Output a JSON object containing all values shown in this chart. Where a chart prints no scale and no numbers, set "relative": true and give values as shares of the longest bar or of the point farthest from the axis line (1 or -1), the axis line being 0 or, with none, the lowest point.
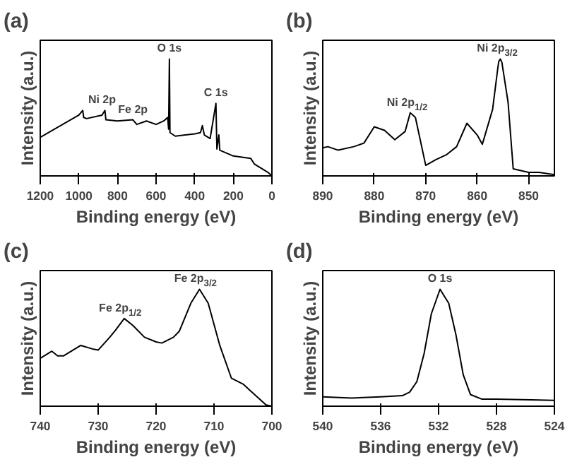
{
  "chart_data": [
    {
      "type": "line",
      "title": "(a)",
      "xlabel": "Binding energy (eV)",
      "ylabel": "Intensity (a.u.)",
      "relative": true,
      "xlim": [
        1200,
        0
      ],
      "xticks": [
        1200,
        1000,
        800,
        600,
        400,
        200,
        0
      ],
      "series": [
        {
          "color": "#000000",
          "x": [
            1200,
            1000,
            980,
            975,
            960,
            880,
            865,
            860,
            800,
            720,
            700,
            650,
            600,
            560,
            540,
            535,
            531,
            528,
            500,
            400,
            370,
            360,
            350,
            320,
            290,
            285,
            275,
            270,
            200,
            110,
            90,
            60,
            20,
            0
          ],
          "values": [
            0.33,
            0.52,
            0.56,
            0.5,
            0.49,
            0.52,
            0.56,
            0.48,
            0.47,
            0.48,
            0.44,
            0.47,
            0.44,
            0.47,
            0.5,
            0.4,
            1.0,
            0.37,
            0.34,
            0.36,
            0.37,
            0.43,
            0.35,
            0.32,
            0.62,
            0.23,
            0.35,
            0.22,
            0.17,
            0.15,
            0.1,
            0.07,
            0.03,
            0.0
          ]
        }
      ],
      "annotations": [
        {
          "text": "Ni 2p",
          "x": 880,
          "y": 0.56
        },
        {
          "text": "Fe 2p",
          "x": 720,
          "y": 0.48
        },
        {
          "text": "O 1s",
          "x": 531,
          "y": 1.0
        },
        {
          "text": "C 1s",
          "x": 290,
          "y": 0.62
        }
      ]
    },
    {
      "type": "line",
      "title": "(b)",
      "xlabel": "Binding energy (eV)",
      "ylabel": "Intensity (a.u.)",
      "relative": true,
      "xlim": [
        890,
        845
      ],
      "xticks": [
        890,
        880,
        870,
        860,
        850
      ],
      "series": [
        {
          "color": "#000000",
          "x": [
            890,
            889,
            887,
            884,
            882,
            880,
            878,
            876,
            874,
            873,
            872,
            870,
            868,
            866,
            864,
            862,
            860,
            859,
            857,
            856,
            855.8,
            855.5,
            855.2,
            854,
            853,
            850,
            848,
            845
          ],
          "values": [
            0.24,
            0.25,
            0.22,
            0.25,
            0.28,
            0.42,
            0.39,
            0.31,
            0.38,
            0.54,
            0.5,
            0.09,
            0.14,
            0.18,
            0.25,
            0.45,
            0.35,
            0.27,
            0.57,
            0.92,
            0.98,
            1.0,
            0.97,
            0.63,
            0.06,
            0.03,
            0.03,
            0.01
          ]
        }
      ],
      "annotations": [
        {
          "text": "Ni 2p$_{1/2}$",
          "x": 873,
          "y": 0.54
        },
        {
          "text": "Ni 2p$_{3/2}$",
          "x": 855.5,
          "y": 1.0
        }
      ]
    },
    {
      "type": "line",
      "title": "(c)",
      "xlabel": "Binding energy (eV)",
      "ylabel": "Intensity (a.u.)",
      "relative": true,
      "xlim": [
        740,
        700
      ],
      "xticks": [
        740,
        730,
        720,
        710,
        700
      ],
      "series": [
        {
          "color": "#000000",
          "x": [
            740,
            738,
            737,
            736,
            733,
            731,
            730,
            728,
            727,
            725.5,
            724,
            722,
            720,
            719,
            717,
            716,
            714,
            712.5,
            711,
            709,
            707,
            705,
            703,
            701,
            700
          ],
          "values": [
            0.41,
            0.47,
            0.43,
            0.43,
            0.52,
            0.49,
            0.48,
            0.59,
            0.65,
            0.75,
            0.69,
            0.59,
            0.55,
            0.54,
            0.59,
            0.64,
            0.88,
            1.0,
            0.88,
            0.52,
            0.24,
            0.19,
            0.1,
            0.01,
            0.0
          ]
        }
      ],
      "annotations": [
        {
          "text": "Fe 2p$_{1/2}$",
          "x": 725.5,
          "y": 0.75
        },
        {
          "text": "Fe 2p$_{3/2}$",
          "x": 712.5,
          "y": 1.0
        }
      ]
    },
    {
      "type": "line",
      "title": "(d)",
      "xlabel": "Binding energy (eV)",
      "ylabel": "Intensity (a.u.)",
      "relative": true,
      "xlim": [
        540,
        524
      ],
      "xticks": [
        540,
        536,
        532,
        528,
        524
      ],
      "series": [
        {
          "color": "#000000",
          "x": [
            540,
            538,
            536,
            534.5,
            534,
            533.5,
            533,
            532.5,
            531.9,
            531.3,
            530.8,
            530.3,
            529.8,
            529,
            528,
            524
          ],
          "values": [
            0.08,
            0.07,
            0.08,
            0.09,
            0.12,
            0.21,
            0.45,
            0.79,
            1.0,
            0.88,
            0.61,
            0.27,
            0.1,
            0.06,
            0.06,
            0.05
          ]
        }
      ],
      "annotations": [
        {
          "text": "O 1s",
          "x": 531.9,
          "y": 1.0
        }
      ]
    }
  ]
}
